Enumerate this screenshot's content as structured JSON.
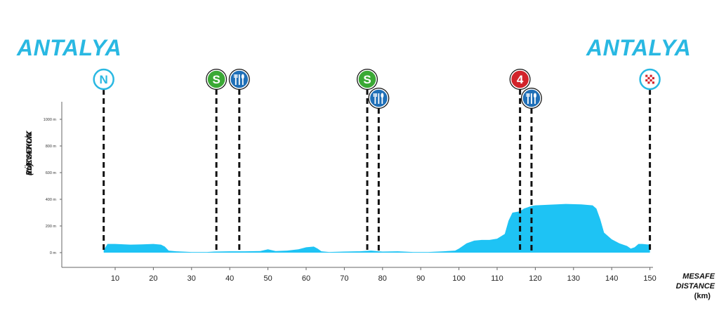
{
  "header": {
    "start_city": "ANTALYA",
    "finish_city": "ANTALYA"
  },
  "colors": {
    "profile_fill": "#1ec3f4",
    "city_text": "#29b8e2",
    "start_marker": "#29b8e2",
    "sprint_marker": "#3aa935",
    "feed_marker": "#1f6fb7",
    "climb_marker": "#d2232a",
    "finish_marker": "#29b8e2"
  },
  "chart_data": {
    "type": "area",
    "ylabel_tr": "YÜKSEKLİK",
    "ylabel_en": "ELEVATION",
    "ylabel_unit": "(m)",
    "xlabel_tr": "MESAFE",
    "xlabel_en": "DISTANCE",
    "xlabel_unit": "(km)",
    "xlim": [
      -7,
      158
    ],
    "ylim": [
      0,
      1100
    ],
    "xticks": [
      10,
      20,
      30,
      40,
      50,
      60,
      70,
      80,
      90,
      100,
      110,
      120,
      130,
      140,
      150
    ],
    "yticks": [
      {
        "value": 0,
        "label": "0 m"
      },
      {
        "value": 200,
        "label": "200 m"
      },
      {
        "value": 400,
        "label": "400 m"
      },
      {
        "value": 600,
        "label": "600 m"
      },
      {
        "value": 800,
        "label": "800 m"
      },
      {
        "value": 1000,
        "label": "1000 m"
      }
    ],
    "profile": {
      "x": [
        7,
        8,
        10,
        14,
        17,
        20,
        22,
        23,
        24,
        26,
        30,
        34,
        36,
        40,
        44,
        48,
        50,
        52,
        55,
        58,
        60,
        62,
        63,
        64,
        66,
        70,
        74,
        77,
        80,
        84,
        88,
        92,
        96,
        99,
        100,
        102,
        104,
        106,
        108,
        110,
        112,
        113,
        114,
        116,
        117,
        119,
        120,
        124,
        128,
        132,
        135,
        136,
        137,
        138,
        140,
        142,
        144,
        145,
        146,
        147,
        148,
        150
      ],
      "y": [
        20,
        65,
        65,
        60,
        62,
        65,
        60,
        45,
        15,
        10,
        5,
        5,
        8,
        10,
        10,
        12,
        25,
        12,
        15,
        25,
        40,
        45,
        30,
        10,
        5,
        8,
        10,
        15,
        8,
        10,
        5,
        5,
        10,
        15,
        30,
        70,
        90,
        95,
        95,
        105,
        140,
        240,
        300,
        310,
        330,
        350,
        355,
        360,
        365,
        362,
        355,
        330,
        250,
        150,
        100,
        70,
        50,
        30,
        40,
        65,
        65,
        60
      ]
    },
    "markers": [
      {
        "km": 7,
        "type": "start",
        "label": "N",
        "name": "start-marker",
        "row": 0
      },
      {
        "km": 36.5,
        "type": "sprint",
        "label": "S",
        "name": "sprint-marker-1",
        "row": 0
      },
      {
        "km": 42.5,
        "type": "feed",
        "label": "",
        "name": "feed-marker-1",
        "row": 0
      },
      {
        "km": 76,
        "type": "sprint",
        "label": "S",
        "name": "sprint-marker-2",
        "row": 0
      },
      {
        "km": 79,
        "type": "feed",
        "label": "",
        "name": "feed-marker-2",
        "row": 1
      },
      {
        "km": 116,
        "type": "climb",
        "label": "4",
        "name": "climb-marker-cat4",
        "row": 0
      },
      {
        "km": 119,
        "type": "feed",
        "label": "",
        "name": "feed-marker-3",
        "row": 1
      },
      {
        "km": 150,
        "type": "finish",
        "label": "",
        "name": "finish-marker",
        "row": 0
      }
    ]
  }
}
